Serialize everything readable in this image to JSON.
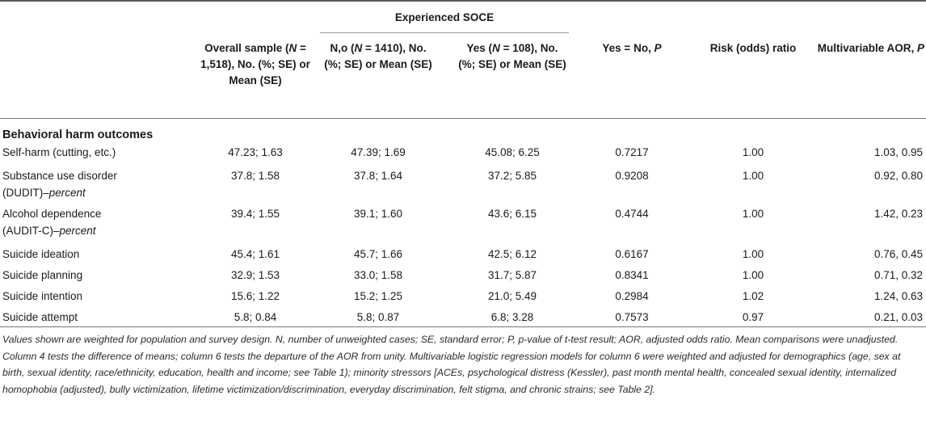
{
  "header": {
    "group_title": "Experienced SOCE",
    "col1_html": "Overall sample (<i>N</i> = 1,518), No. (%; SE) or Mean (SE)",
    "col2_html": "N,o (<i>N</i> = 1410), No. (%; SE) or Mean (SE)",
    "col3_html": "Yes (<i>N</i> = 108), No. (%; SE) or Mean (SE)",
    "col4_html": "Yes = No, <i>P</i>",
    "col5": "Risk (odds) ratio",
    "col6_html": "Multivariable AOR, <i>P</i>"
  },
  "section_title": "Behavioral harm outcomes",
  "rows": [
    {
      "label": "Self-harm (cutting, etc.)",
      "label2": "",
      "label2_italic": "",
      "overall": "47.23; 1.63",
      "no": "47.39; 1.69",
      "yes": "45.08; 6.25",
      "p": "0.7217",
      "rr": "1.00",
      "aor": "1.03, 0.95"
    },
    {
      "label": "Substance use disorder",
      "label2": "(DUDIT)–",
      "label2_italic": "percent",
      "overall": "37.8; 1.58",
      "no": "37.8; 1.64",
      "yes": "37.2; 5.85",
      "p": "0.9208",
      "rr": "1.00",
      "aor": "0.92, 0.80"
    },
    {
      "label": "Alcohol dependence",
      "label2": "(AUDIT-C)–",
      "label2_italic": "percent",
      "overall": "39.4; 1.55",
      "no": "39.1; 1.60",
      "yes": "43.6; 6.15",
      "p": "0.4744",
      "rr": "1.00",
      "aor": "1.42, 0.23"
    },
    {
      "label": "Suicide ideation",
      "label2": "",
      "label2_italic": "",
      "overall": "45.4; 1.61",
      "no": "45.7; 1.66",
      "yes": "42.5; 6.12",
      "p": "0.6167",
      "rr": "1.00",
      "aor": "0.76, 0.45"
    },
    {
      "label": "Suicide planning",
      "label2": "",
      "label2_italic": "",
      "overall": "32.9; 1.53",
      "no": "33.0; 1.58",
      "yes": "31.7; 5.87",
      "p": "0.8341",
      "rr": "1.00",
      "aor": "0.71, 0.32"
    },
    {
      "label": "Suicide intention",
      "label2": "",
      "label2_italic": "",
      "overall": "15.6; 1.22",
      "no": "15.2; 1.25",
      "yes": "21.0; 5.49",
      "p": "0.2984",
      "rr": "1.02",
      "aor": "1.24, 0.63"
    },
    {
      "label": "Suicide attempt",
      "label2": "",
      "label2_italic": "",
      "overall": "5.8; 0.84",
      "no": "5.8; 0.87",
      "yes": "6.8; 3.28",
      "p": "0.7573",
      "rr": "0.97",
      "aor": "0.21, 0.03"
    }
  ],
  "footnote_html": "Values shown are weighted for population and survey design. N, number of unweighted cases; SE, standard error; P, p-value of t-test result; AOR, adjusted odds ratio. Mean comparisons were unadjusted. Column 4 tests the difference of means; column 6 tests the departure of the AOR from unity. Multivariable logistic regression models for column 6 were weighted and adjusted for demographics (age, sex at birth, sexual identity, race/ethnicity, education, health and income; see Table 1); minority stressors [ACEs, psychological distress (Kessler), past month mental health, concealed sexual identity, internalized homophobia (adjusted), bully victimization, lifetime victimization/discrimination, everyday discrimination, felt stigma, and chronic strains; see Table 2]."
}
